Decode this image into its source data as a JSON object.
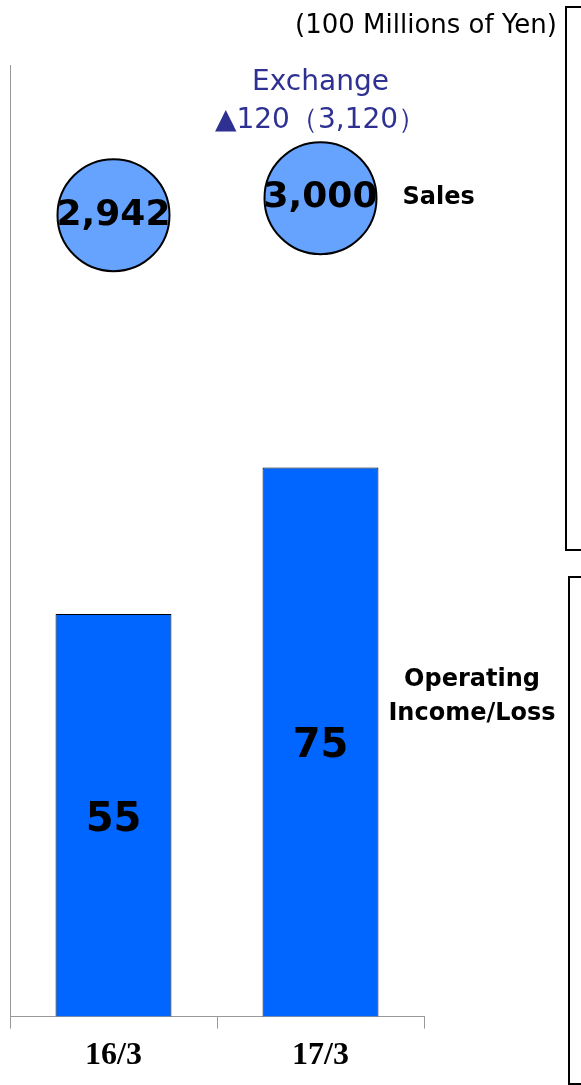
{
  "chart_data": {
    "type": "bar",
    "categories": [
      "16/3",
      "17/3"
    ],
    "series": [
      {
        "name": "Operating Income/Loss",
        "color": "#0066ff",
        "values": [
          55,
          75
        ]
      },
      {
        "name": "Sales",
        "type": "scatter",
        "axis": "y2",
        "color": "#66a3ff",
        "values": [
          2942,
          3000
        ],
        "value_labels": [
          "2,942",
          "3,000"
        ]
      }
    ],
    "ylim": [
      0,
      130
    ],
    "y2lim": [
      209,
      3454
    ],
    "tick_labels": "x",
    "data_labels": true,
    "grid": false,
    "legend": false,
    "marker": "circle",
    "annotations": [
      "(100 Millions of Yen)",
      "Exchange\n▲120（3,120）"
    ]
  }
}
